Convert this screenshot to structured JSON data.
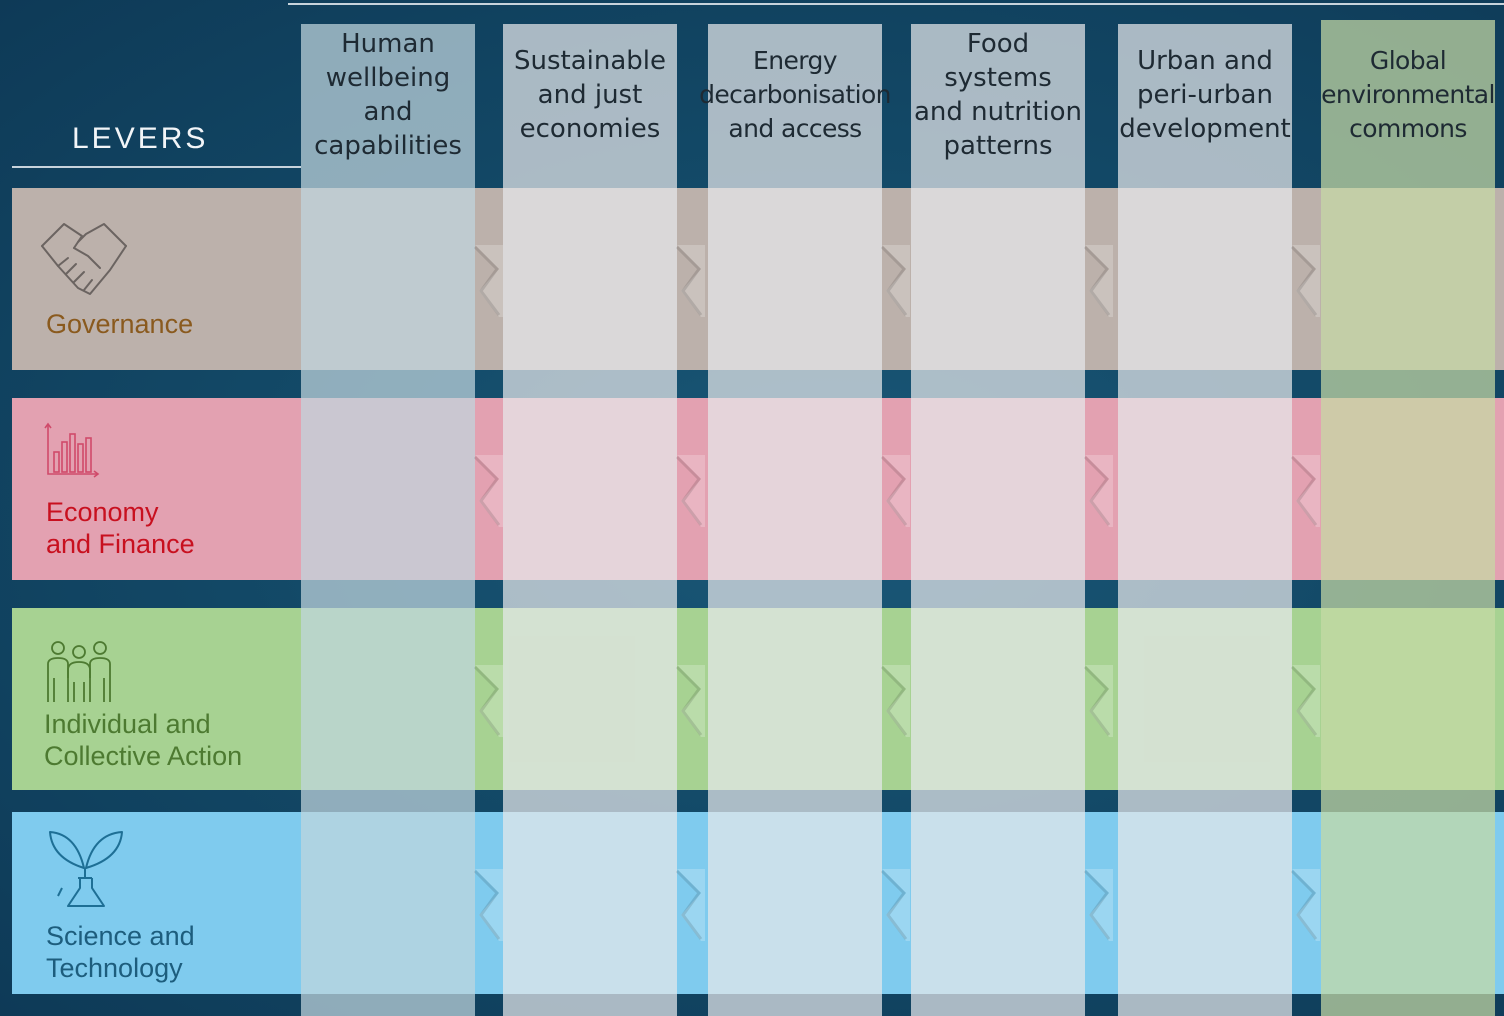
{
  "levers_title": "LEVERS",
  "levers": [
    {
      "id": "governance",
      "label": "Governance",
      "icon": "handshake-icon",
      "band_color": "#bcb1ab",
      "text_color": "#8a5a1e"
    },
    {
      "id": "economy",
      "label": "Economy\nand Finance",
      "icon": "bar-chart-icon",
      "band_color": "#e3a1b1",
      "text_color": "#c8101f"
    },
    {
      "id": "individual",
      "label": "Individual and\nCollective Action",
      "icon": "people-icon",
      "band_color": "#a7d292",
      "text_color": "#4d7a31"
    },
    {
      "id": "science",
      "label": "Science and\nTechnology",
      "icon": "plant-flask-icon",
      "band_color": "#7fcbee",
      "text_color": "#1d5d7d"
    }
  ],
  "entry_points": [
    {
      "id": "human-wellbeing",
      "label": "Human\nwellbeing and\ncapabilities",
      "color": "#c0d6de"
    },
    {
      "id": "sustainable-economies",
      "label": "Sustainable\nand just\neconomies",
      "color": "#e6e7ea"
    },
    {
      "id": "energy",
      "label": "Energy\ndecarbonisation\nand access",
      "color": "#e6e7ea"
    },
    {
      "id": "food-systems",
      "label": "Food  systems\nand nutrition\npatterns",
      "color": "#e6e7ea"
    },
    {
      "id": "urban",
      "label": "Urban and\nperi-urban\ndevelopment",
      "color": "#e6e7ea"
    },
    {
      "id": "global-commons",
      "label": "Global\nenvironmental\ncommons",
      "color": "#c6d9a5"
    }
  ]
}
